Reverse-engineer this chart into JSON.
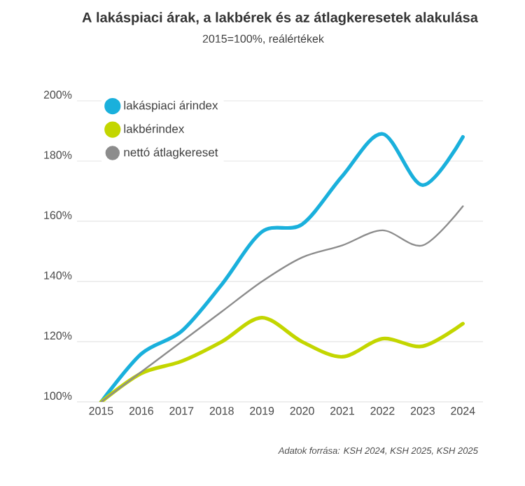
{
  "chart_data": {
    "type": "line",
    "title": "A lakáspiaci árak, a lakbérek és az átlagkeresetek alakulása",
    "subtitle": "2015=100%, reálértékek",
    "x": [
      2015,
      2016,
      2017,
      2018,
      2019,
      2020,
      2021,
      2022,
      2023,
      2024
    ],
    "series": [
      {
        "name": "lakáspiaci árindex",
        "color": "#1ab0dc",
        "values": [
          100,
          116,
          123.5,
          139,
          156.5,
          159,
          175,
          189,
          172,
          188
        ]
      },
      {
        "name": "lakbérindex",
        "color": "#c3d600",
        "values": [
          100,
          109.5,
          113.5,
          120,
          128,
          120,
          115,
          121,
          118.5,
          126
        ]
      },
      {
        "name": "nettó átlagkereset",
        "color": "#8c8c8c",
        "values": [
          100,
          110,
          120,
          130,
          140,
          148,
          152,
          157,
          152,
          165
        ]
      }
    ],
    "xlim": [
      2014.4,
      2024.5
    ],
    "xticks": [
      2015,
      2016,
      2017,
      2018,
      2019,
      2020,
      2021,
      2022,
      2023,
      2024
    ],
    "ylim": [
      100,
      200
    ],
    "yticks": [
      {
        "value": 100,
        "label": "100%"
      },
      {
        "value": 120,
        "label": "120%"
      },
      {
        "value": 140,
        "label": "140%"
      },
      {
        "value": 160,
        "label": "160%"
      },
      {
        "value": 180,
        "label": "180%"
      },
      {
        "value": 200,
        "label": "200%"
      }
    ],
    "grid": "y",
    "legend": "top left",
    "line_style": "solid",
    "annotations": [
      "Adatok forrása: KSH 2024, KSH 2025, KSH 2025"
    ]
  }
}
